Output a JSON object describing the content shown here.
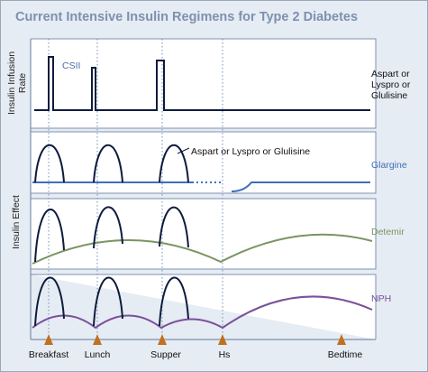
{
  "title": "Current Intensive Insulin Regimens for Type 2 Diabetes",
  "axes": {
    "infusion_line1": "Insulin Infusion",
    "infusion_line2": "Rate",
    "effect": "Insulin Effect"
  },
  "labels": {
    "csii": "CSII",
    "bolus_line1": "Aspart or",
    "bolus_line2": "Lyspro or",
    "bolus_line3": "Glulisine",
    "bolus_annotation": "Aspart or Lyspro or Glulisine",
    "glargine": "Glargine",
    "detemir": "Detemir",
    "nph": "NPH"
  },
  "timepoints": [
    "Breakfast",
    "Lunch",
    "Supper",
    "Hs",
    "Bedtime"
  ],
  "colors": {
    "background": "#e6ecf3",
    "panel": "#ffffff",
    "title": "#7d90b0",
    "csii_label": "#4a6f9e",
    "glargine": "#3f6fba",
    "detemir": "#7a9463",
    "nph": "#7a4f9c",
    "bolus": "#0d1b3d",
    "arrow": "#c2701e",
    "guide": "#6f8fb5"
  }
}
